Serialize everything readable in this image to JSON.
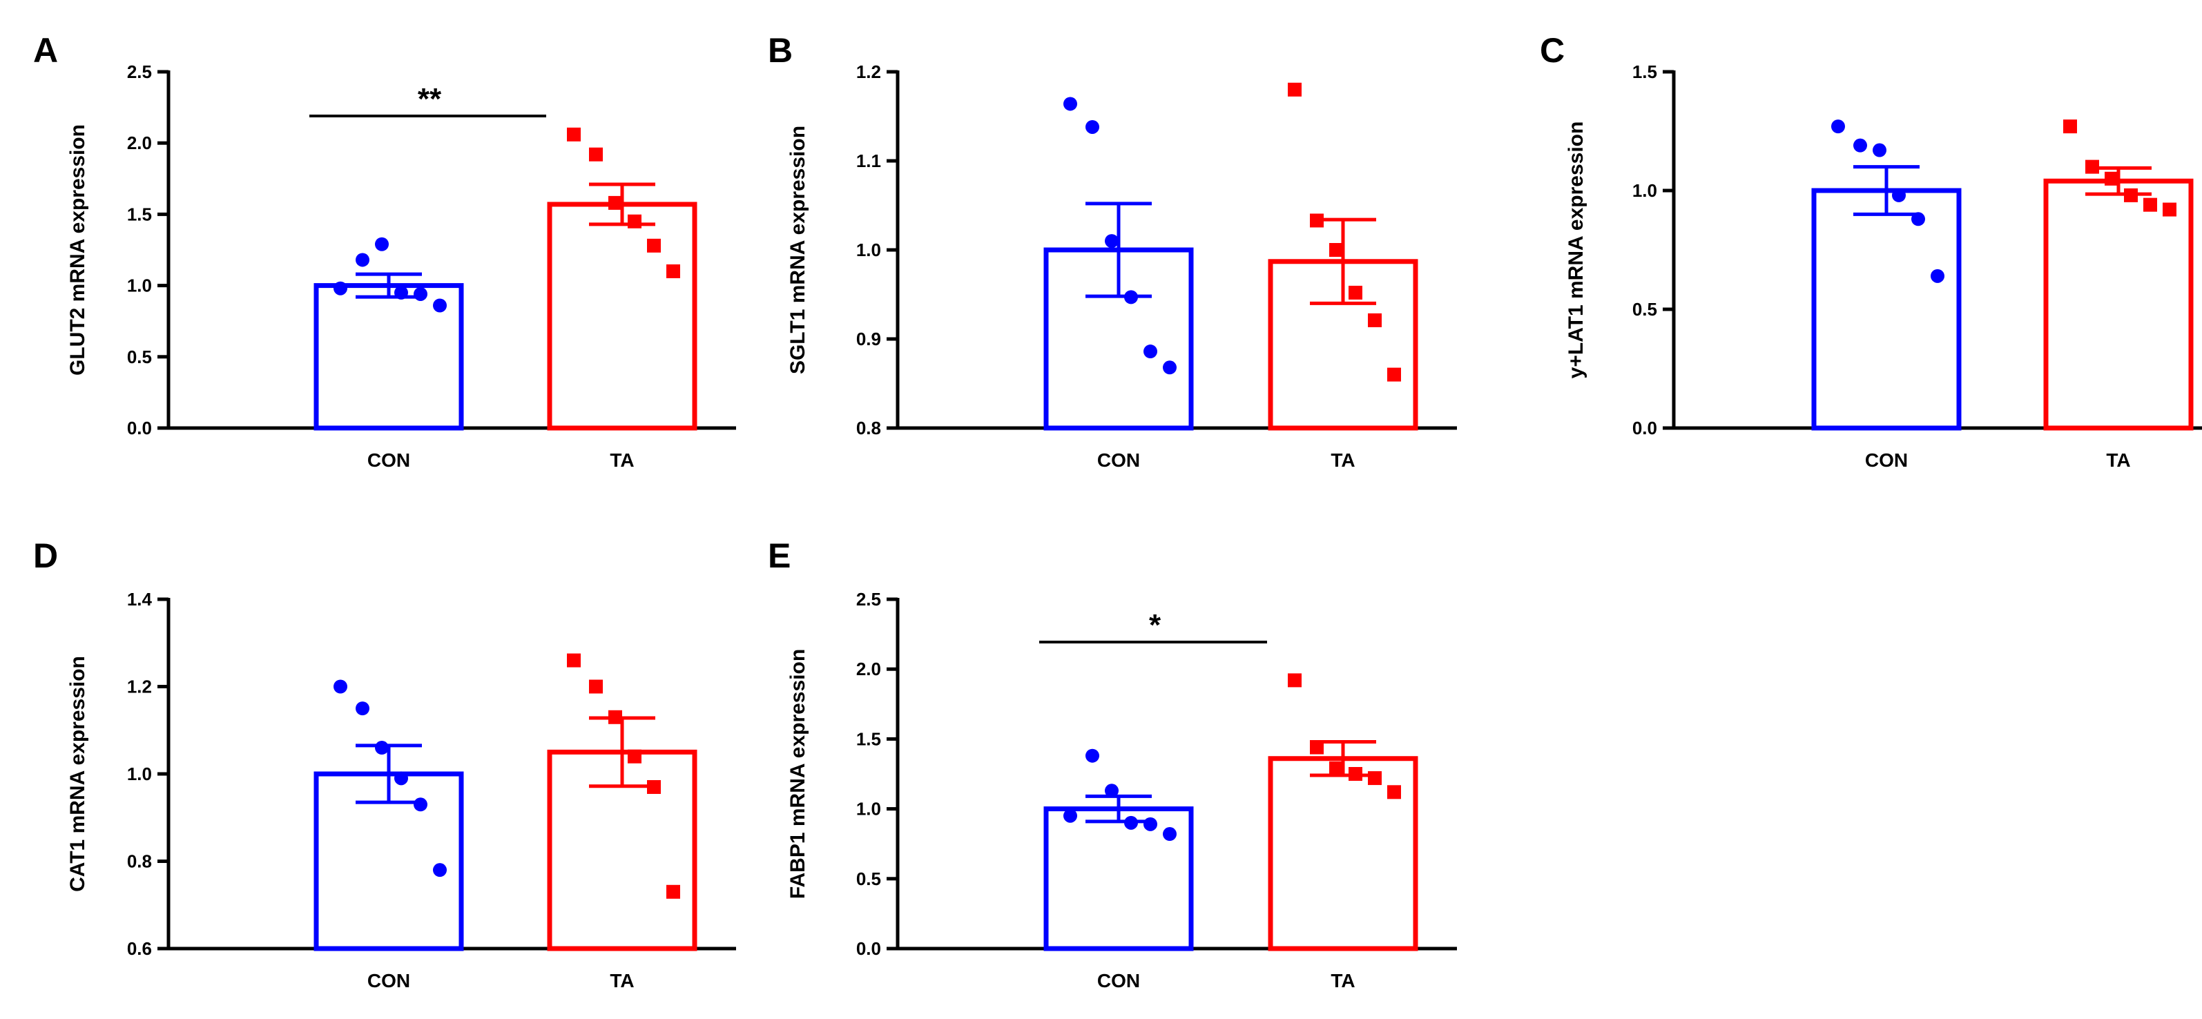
{
  "figure_colors": {
    "CON": "#0000ff",
    "TA": "#ff0000",
    "axis": "#000000"
  },
  "chart_data": [
    {
      "panel": "A",
      "type": "bar",
      "ylabel": "GLUT2 mRNA expression",
      "ylim": [
        0,
        2.5
      ],
      "yticks": [
        0.0,
        0.5,
        1.0,
        1.5,
        2.0,
        2.5
      ],
      "ytick_labels": [
        "0.0",
        "0.5",
        "1.0",
        "1.5",
        "2.0",
        "2.5"
      ],
      "categories": [
        "CON",
        "TA"
      ],
      "values": [
        1.0,
        1.57
      ],
      "sem": [
        0.08,
        0.14
      ],
      "points": [
        [
          0.98,
          1.18,
          1.29,
          0.95,
          0.94,
          0.86
        ],
        [
          2.06,
          1.92,
          1.58,
          1.45,
          1.28,
          1.1
        ]
      ],
      "significance": "**"
    },
    {
      "panel": "B",
      "type": "bar",
      "ylabel": "SGLT1 mRNA expression",
      "ylim": [
        0.8,
        1.2
      ],
      "yticks": [
        0.8,
        0.9,
        1.0,
        1.1,
        1.2
      ],
      "ytick_labels": [
        "0.8",
        "0.9",
        "1.0",
        "1.1",
        "1.2"
      ],
      "categories": [
        "CON",
        "TA"
      ],
      "values": [
        1.0,
        0.987
      ],
      "sem": [
        0.052,
        0.047
      ],
      "points": [
        [
          1.164,
          1.138,
          1.01,
          0.947,
          0.886,
          0.868
        ],
        [
          1.18,
          1.033,
          1.0,
          0.952,
          0.921,
          0.86
        ]
      ],
      "significance": ""
    },
    {
      "panel": "C",
      "type": "bar",
      "ylabel": "y+LAT1 mRNA expression",
      "ylim": [
        0,
        1.5
      ],
      "yticks": [
        0.0,
        0.5,
        1.0,
        1.5
      ],
      "ytick_labels": [
        "0.0",
        "0.5",
        "1.0",
        "1.5"
      ],
      "categories": [
        "CON",
        "TA"
      ],
      "values": [
        1.0,
        1.04
      ],
      "sem": [
        0.1,
        0.055
      ],
      "points": [
        [
          1.27,
          1.19,
          1.17,
          0.98,
          0.88,
          0.64
        ],
        [
          1.27,
          1.1,
          1.05,
          0.98,
          0.94,
          0.92
        ]
      ],
      "significance": ""
    },
    {
      "panel": "D",
      "type": "bar",
      "ylabel": "CAT1 mRNA expression",
      "ylim": [
        0.6,
        1.4
      ],
      "yticks": [
        0.6,
        0.8,
        1.0,
        1.2,
        1.4
      ],
      "ytick_labels": [
        "0.6",
        "0.8",
        "1.0",
        "1.2",
        "1.4"
      ],
      "categories": [
        "CON",
        "TA"
      ],
      "values": [
        1.0,
        1.05
      ],
      "sem": [
        0.065,
        0.078
      ],
      "points": [
        [
          1.2,
          1.15,
          1.06,
          0.99,
          0.93,
          0.78
        ],
        [
          1.26,
          1.2,
          1.13,
          1.04,
          0.97,
          0.73
        ]
      ],
      "significance": ""
    },
    {
      "panel": "E",
      "type": "bar",
      "ylabel": "FABP1 mRNA expression",
      "ylim": [
        0,
        2.5
      ],
      "yticks": [
        0.0,
        0.5,
        1.0,
        1.5,
        2.0,
        2.5
      ],
      "ytick_labels": [
        "0.0",
        "0.5",
        "1.0",
        "1.5",
        "2.0",
        "2.5"
      ],
      "categories": [
        "CON",
        "TA"
      ],
      "values": [
        1.0,
        1.36
      ],
      "sem": [
        0.09,
        0.12
      ],
      "points": [
        [
          0.95,
          1.38,
          1.13,
          0.9,
          0.89,
          0.82
        ],
        [
          1.92,
          1.44,
          1.29,
          1.25,
          1.22,
          1.12
        ]
      ],
      "significance": "*"
    }
  ]
}
